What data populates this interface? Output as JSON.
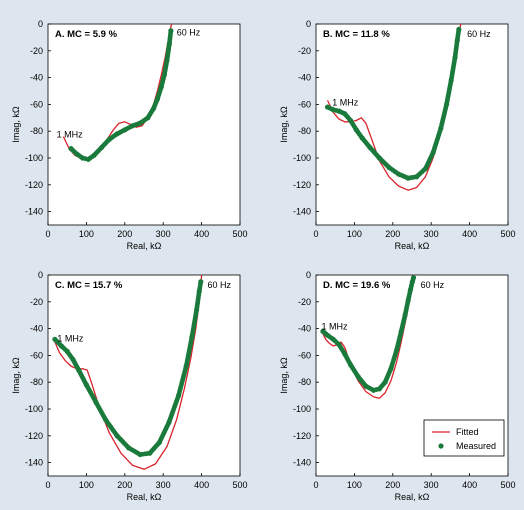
{
  "figure": {
    "background": "#dde6ee",
    "plot_background": "#ffffff"
  },
  "legend": {
    "fitted_label": "Fitted",
    "measured_label": "Measured",
    "fitted_color": "#d9232a",
    "measured_color": "#1a7a3c",
    "placement": "bottom-right of panel D"
  },
  "chart_data": [
    {
      "type": "line",
      "title": "A. MC = 5.9 %",
      "xlabel": "Real, kΩ",
      "ylabel": "Imag, kΩ",
      "xlim": [
        0,
        500
      ],
      "ylim": [
        -150,
        0
      ],
      "xticks": [
        "0",
        "100",
        "200",
        "300",
        "400",
        "500"
      ],
      "yticks": [
        "0",
        "-20",
        "-40",
        "-60",
        "-80",
        "-100",
        "-120",
        "-140"
      ],
      "grid": false,
      "annotations": [
        {
          "text": "60 Hz",
          "x": 325,
          "y": -2
        },
        {
          "text": "1 MHz",
          "x": 12,
          "y": -78
        }
      ],
      "series": [
        {
          "name": "Fitted",
          "x": [
            40,
            55,
            70,
            85,
            100,
            115,
            130,
            150,
            170,
            185,
            200,
            215,
            230,
            245,
            260,
            275,
            285,
            295,
            305,
            312,
            318,
            322
          ],
          "y": [
            -84,
            -93,
            -98,
            -100,
            -101,
            -100,
            -96,
            -88,
            -79,
            -74,
            -73,
            -75,
            -77,
            -76,
            -70,
            -60,
            -50,
            -38,
            -25,
            -14,
            -5,
            0
          ]
        },
        {
          "name": "Measured",
          "x": [
            60,
            75,
            90,
            105,
            120,
            140,
            160,
            180,
            200,
            220,
            240,
            260,
            275,
            285,
            295,
            303,
            310,
            316,
            320
          ],
          "y": [
            -93,
            -97,
            -100,
            -101,
            -98,
            -92,
            -86,
            -82,
            -79,
            -76,
            -74,
            -70,
            -63,
            -56,
            -47,
            -38,
            -27,
            -15,
            -5
          ]
        }
      ]
    },
    {
      "type": "line",
      "title": "B. MC = 11.8 %",
      "xlabel": "Real, kΩ",
      "ylabel": "Imag, kΩ",
      "xlim": [
        0,
        500
      ],
      "ylim": [
        -150,
        0
      ],
      "xticks": [
        "0",
        "100",
        "200",
        "300",
        "400",
        "500"
      ],
      "yticks": [
        "0",
        "-20",
        "-40",
        "-60",
        "-80",
        "-100",
        "-120",
        "-140"
      ],
      "grid": false,
      "annotations": [
        {
          "text": "60 Hz",
          "x": 383,
          "y": -3
        },
        {
          "text": "1 MHz",
          "x": 32,
          "y": -54
        }
      ],
      "series": [
        {
          "name": "Fitted",
          "x": [
            30,
            45,
            60,
            75,
            90,
            105,
            118,
            130,
            145,
            165,
            190,
            215,
            240,
            262,
            285,
            305,
            325,
            340,
            352,
            362,
            370,
            377
          ],
          "y": [
            -57,
            -66,
            -71,
            -73,
            -73,
            -72,
            -70,
            -74,
            -86,
            -102,
            -114,
            -121,
            -124,
            -122,
            -114,
            -100,
            -80,
            -60,
            -42,
            -25,
            -10,
            0
          ]
        },
        {
          "name": "Measured",
          "x": [
            30,
            45,
            60,
            75,
            90,
            105,
            120,
            140,
            165,
            190,
            215,
            240,
            262,
            285,
            305,
            325,
            340,
            352,
            362,
            368,
            372
          ],
          "y": [
            -62,
            -64,
            -65,
            -67,
            -72,
            -79,
            -85,
            -92,
            -100,
            -107,
            -112,
            -115,
            -114,
            -108,
            -96,
            -78,
            -60,
            -42,
            -25,
            -12,
            -4
          ]
        }
      ]
    },
    {
      "type": "line",
      "title": "C. MC = 15.7 %",
      "xlabel": "Real, kΩ",
      "ylabel": "Imag, kΩ",
      "xlim": [
        0,
        500
      ],
      "ylim": [
        -150,
        0
      ],
      "xticks": [
        "0",
        "100",
        "200",
        "300",
        "400",
        "500"
      ],
      "yticks": [
        "0",
        "-20",
        "-40",
        "-60",
        "-80",
        "-100",
        "-120",
        "-140"
      ],
      "grid": false,
      "annotations": [
        {
          "text": "60 Hz",
          "x": 405,
          "y": -3
        },
        {
          "text": "1 MHz",
          "x": 14,
          "y": -43
        }
      ],
      "series": [
        {
          "name": "Fitted",
          "x": [
            15,
            30,
            45,
            60,
            75,
            90,
            102,
            115,
            135,
            160,
            190,
            220,
            250,
            280,
            310,
            335,
            355,
            372,
            385,
            393,
            398,
            400
          ],
          "y": [
            -48,
            -58,
            -64,
            -68,
            -70,
            -70,
            -71,
            -82,
            -100,
            -118,
            -133,
            -142,
            -145,
            -141,
            -128,
            -108,
            -85,
            -62,
            -40,
            -22,
            -8,
            0
          ]
        },
        {
          "name": "Measured",
          "x": [
            18,
            35,
            50,
            65,
            80,
            100,
            125,
            150,
            180,
            210,
            240,
            265,
            290,
            315,
            340,
            360,
            375,
            387,
            394,
            398
          ],
          "y": [
            -48,
            -53,
            -57,
            -63,
            -71,
            -82,
            -95,
            -108,
            -120,
            -129,
            -134,
            -133,
            -125,
            -110,
            -90,
            -68,
            -46,
            -26,
            -12,
            -5
          ]
        }
      ]
    },
    {
      "type": "line",
      "title": "D. MC = 19.6 %",
      "xlabel": "Real, kΩ",
      "ylabel": "Imag, kΩ",
      "xlim": [
        0,
        500
      ],
      "ylim": [
        -150,
        0
      ],
      "xticks": [
        "0",
        "100",
        "200",
        "300",
        "400",
        "500"
      ],
      "yticks": [
        "0",
        "-20",
        "-40",
        "-60",
        "-80",
        "-100",
        "-120",
        "-140"
      ],
      "grid": false,
      "annotations": [
        {
          "text": "60 Hz",
          "x": 262,
          "y": -3
        },
        {
          "text": "1 MHz",
          "x": 4,
          "y": -34
        }
      ],
      "series": [
        {
          "name": "Fitted",
          "x": [
            15,
            25,
            35,
            45,
            55,
            65,
            75,
            90,
            110,
            130,
            150,
            165,
            180,
            195,
            210,
            222,
            232,
            240,
            247,
            252,
            256
          ],
          "y": [
            -42,
            -48,
            -51,
            -53,
            -52,
            -50,
            -54,
            -67,
            -79,
            -87,
            -91,
            -92,
            -88,
            -79,
            -65,
            -50,
            -36,
            -24,
            -13,
            -5,
            0
          ]
        },
        {
          "name": "Measured",
          "x": [
            18,
            30,
            45,
            60,
            75,
            90,
            110,
            130,
            150,
            165,
            180,
            195,
            210,
            222,
            232,
            240,
            246,
            251,
            254
          ],
          "y": [
            -42,
            -45,
            -48,
            -52,
            -59,
            -67,
            -76,
            -83,
            -86,
            -85,
            -80,
            -70,
            -56,
            -42,
            -30,
            -19,
            -11,
            -5,
            -2
          ]
        }
      ]
    }
  ]
}
